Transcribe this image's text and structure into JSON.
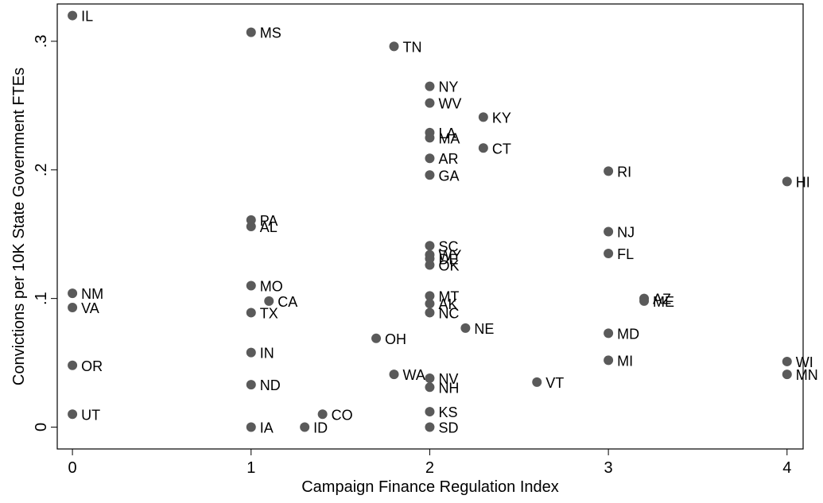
{
  "chart_data": {
    "type": "scatter",
    "xlabel": "Campaign Finance Regulation Index",
    "ylabel": "Convictions per 10K State Government FTEs",
    "xlim": [
      -0.085,
      4.09
    ],
    "ylim": [
      -0.017,
      0.329
    ],
    "xticks": [
      0,
      1,
      2,
      3,
      4
    ],
    "yticks": [
      0,
      {
        "value": 0.1,
        "label": ".1"
      },
      {
        "value": 0.2,
        "label": ".2"
      },
      {
        "value": 0.3,
        "label": ".3"
      }
    ],
    "grid": false,
    "color": "#5a5a5a",
    "labels": [
      "IL",
      "MS",
      "TN",
      "NY",
      "WV",
      "KY",
      "LA",
      "MA",
      "CT",
      "AR",
      "GA",
      "RI",
      "HI",
      "PA",
      "AL",
      "NJ",
      "SC",
      "WY",
      "DE",
      "OK",
      "FL",
      "MO",
      "NM",
      "MT",
      "AZ",
      "ME",
      "CA",
      "VA",
      "AK",
      "TX",
      "NC",
      "NE",
      "MD",
      "OH",
      "IN",
      "MI",
      "WI",
      "OR",
      "WA",
      "MN",
      "NV",
      "VT",
      "ND",
      "NH",
      "UT",
      "CO",
      "KS",
      "IA",
      "ID",
      "SD"
    ],
    "x": [
      0,
      1,
      1.8,
      2,
      2,
      2.3,
      2,
      2,
      2.3,
      2,
      2,
      3,
      4,
      1,
      1,
      3,
      2,
      2,
      2,
      2,
      3,
      1,
      0,
      2,
      3.2,
      3.2,
      1.1,
      0,
      2,
      1,
      2,
      2.2,
      3,
      1.7,
      1,
      3,
      4,
      0,
      1.8,
      4,
      2,
      2.6,
      1,
      2,
      0,
      1.4,
      2,
      1,
      1.3,
      2
    ],
    "values": [
      0.32,
      0.307,
      0.296,
      0.265,
      0.252,
      0.241,
      0.229,
      0.225,
      0.217,
      0.209,
      0.196,
      0.199,
      0.191,
      0.161,
      0.156,
      0.152,
      0.141,
      0.134,
      0.131,
      0.126,
      0.135,
      0.11,
      0.104,
      0.102,
      0.1,
      0.098,
      0.098,
      0.093,
      0.096,
      0.089,
      0.089,
      0.077,
      0.073,
      0.069,
      0.058,
      0.052,
      0.051,
      0.048,
      0.041,
      0.041,
      0.038,
      0.035,
      0.033,
      0.031,
      0.01,
      0.01,
      0.012,
      0,
      0,
      0
    ]
  }
}
